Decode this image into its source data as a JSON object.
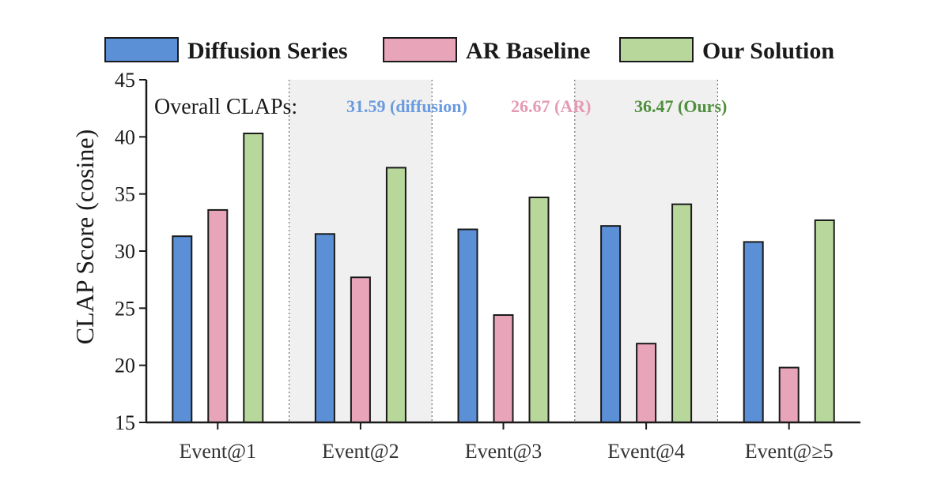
{
  "chart_data": {
    "type": "bar",
    "categories": [
      "Event@1",
      "Event@2",
      "Event@3",
      "Event@4",
      "Event@≥5"
    ],
    "series": [
      {
        "name": "Diffusion Series",
        "values": [
          31.3,
          31.5,
          31.9,
          32.2,
          30.8
        ],
        "color": "#5b8fd6"
      },
      {
        "name": "AR Baseline",
        "values": [
          33.6,
          27.7,
          24.4,
          21.9,
          19.8
        ],
        "color": "#e8a4b8"
      },
      {
        "name": "Our Solution",
        "values": [
          40.3,
          37.3,
          34.7,
          34.1,
          32.7
        ],
        "color": "#b8d89b"
      }
    ],
    "xlabel": "",
    "ylabel": "CLAP Score (cosine)",
    "ylim": [
      15,
      45
    ],
    "yticks": [
      15,
      20,
      25,
      30,
      35,
      40,
      45
    ],
    "legend_position": "top",
    "shaded_categories": [
      1,
      3
    ],
    "shade_color": "#f0f0f0",
    "annotation": {
      "label": "Overall CLAPs:",
      "items": [
        {
          "text": "31.59 (diffusion)",
          "color": "#6a9ae0"
        },
        {
          "text": "26.67 (AR)",
          "color": "#e59ab2"
        },
        {
          "text": "36.47 (Ours)",
          "color": "#4f8f3c"
        }
      ]
    }
  }
}
